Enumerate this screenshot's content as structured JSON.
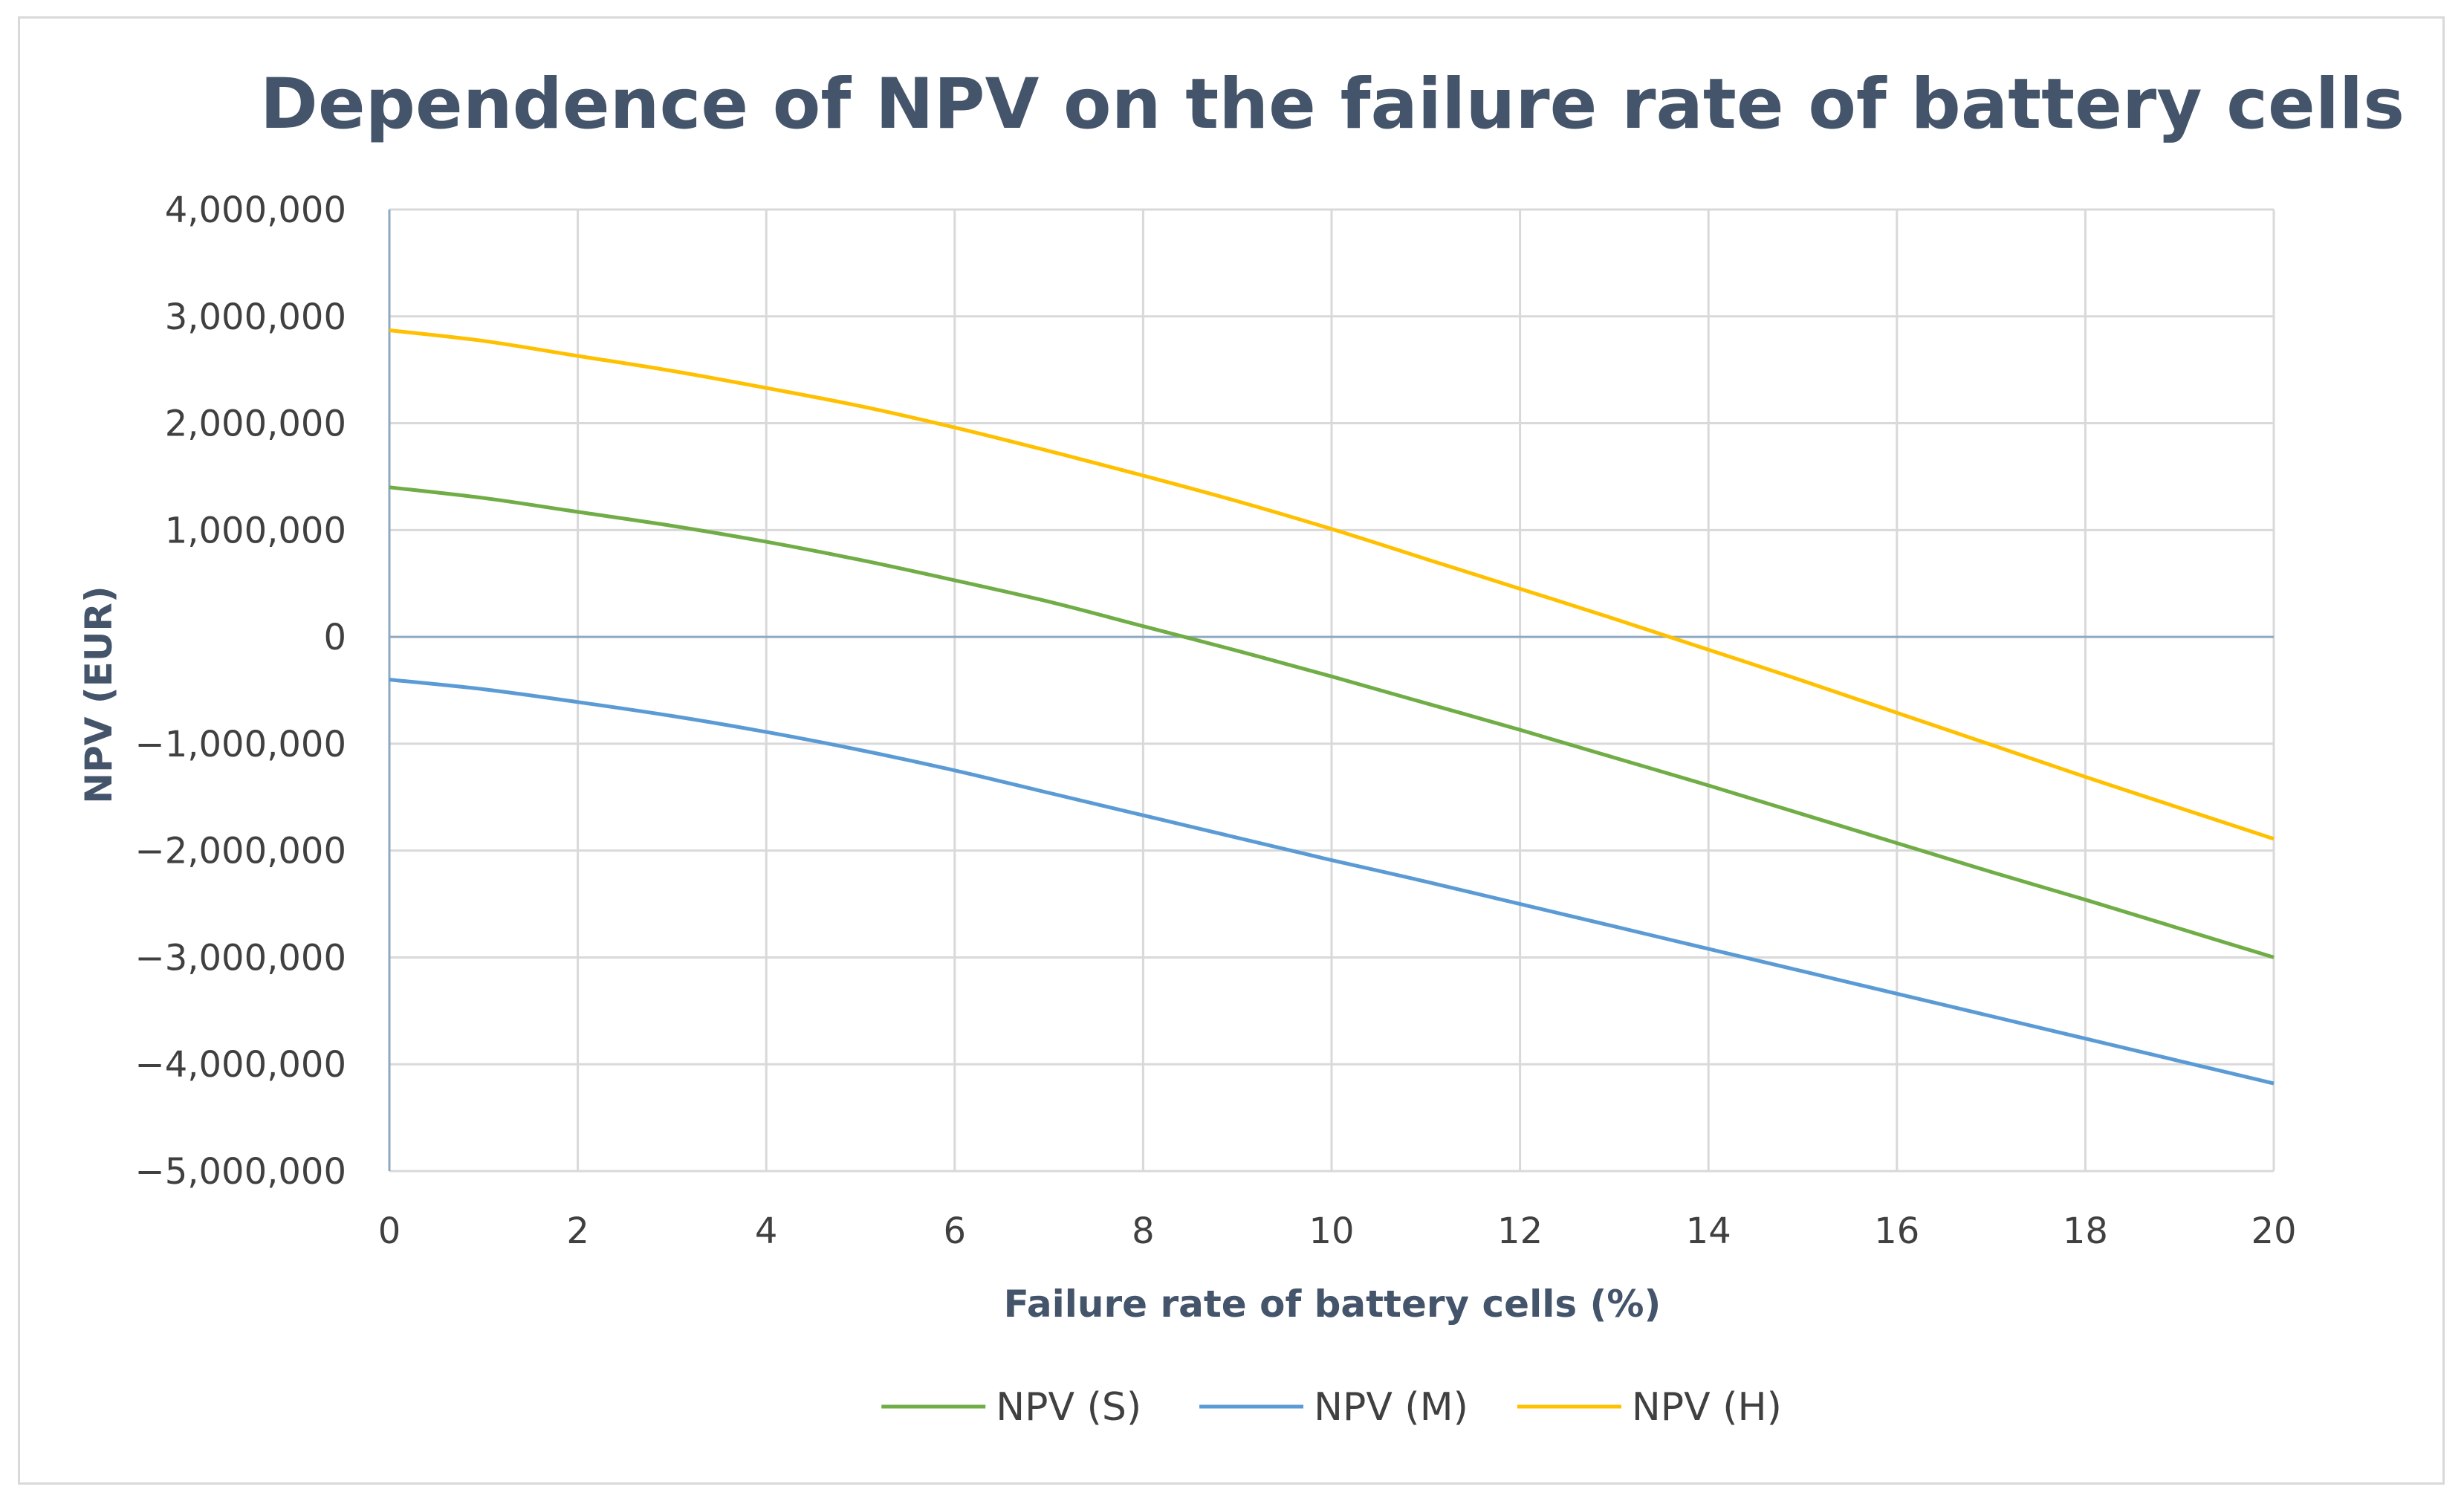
{
  "chart_data": {
    "type": "line",
    "title": "Dependence of NPV on the failure rate of battery cells",
    "xlabel": "Failure rate of battery cells (%)",
    "ylabel": "NPV (EUR)",
    "xlim": [
      0,
      20
    ],
    "ylim": [
      -5000000,
      4000000
    ],
    "x_ticks": [
      0,
      2,
      4,
      6,
      8,
      10,
      12,
      14,
      16,
      18,
      20
    ],
    "x_tick_labels": [
      "0",
      "2",
      "4",
      "6",
      "8",
      "10",
      "12",
      "14",
      "16",
      "18",
      "20"
    ],
    "y_ticks": [
      4000000,
      3000000,
      2000000,
      1000000,
      0,
      -1000000,
      -2000000,
      -3000000,
      -4000000,
      -5000000
    ],
    "y_tick_labels": [
      "4,000,000",
      "3,000,000",
      "2,000,000",
      "1,000,000",
      "0",
      "−1,000,000",
      "−2,000,000",
      "−3,000,000",
      "−4,000,000",
      "−5,000,000"
    ],
    "grid": true,
    "legend_position": "bottom",
    "x": [
      0,
      1,
      2,
      3,
      4,
      5,
      6,
      7,
      8,
      9,
      10,
      11,
      12,
      13,
      14,
      15,
      16,
      17,
      18,
      19,
      20
    ],
    "series": [
      {
        "name": "NPV (S)",
        "color": "#70ad47",
        "values": [
          1400000,
          1300000,
          1170000,
          1040000,
          890000,
          720000,
          530000,
          330000,
          100000,
          -130000,
          -370000,
          -620000,
          -870000,
          -1130000,
          -1390000,
          -1660000,
          -1930000,
          -2200000,
          -2460000,
          -2730000,
          -3000000
        ]
      },
      {
        "name": "NPV (M)",
        "color": "#5b9bd5",
        "values": [
          -400000,
          -490000,
          -610000,
          -740000,
          -890000,
          -1060000,
          -1250000,
          -1460000,
          -1670000,
          -1880000,
          -2090000,
          -2290000,
          -2500000,
          -2710000,
          -2920000,
          -3130000,
          -3340000,
          -3550000,
          -3760000,
          -3970000,
          -4180000
        ]
      },
      {
        "name": "NPV (H)",
        "color": "#ffc000",
        "values": [
          2870000,
          2770000,
          2630000,
          2490000,
          2330000,
          2160000,
          1960000,
          1740000,
          1510000,
          1270000,
          1010000,
          730000,
          450000,
          170000,
          -120000,
          -410000,
          -710000,
          -1010000,
          -1310000,
          -1600000,
          -1890000
        ]
      }
    ]
  }
}
